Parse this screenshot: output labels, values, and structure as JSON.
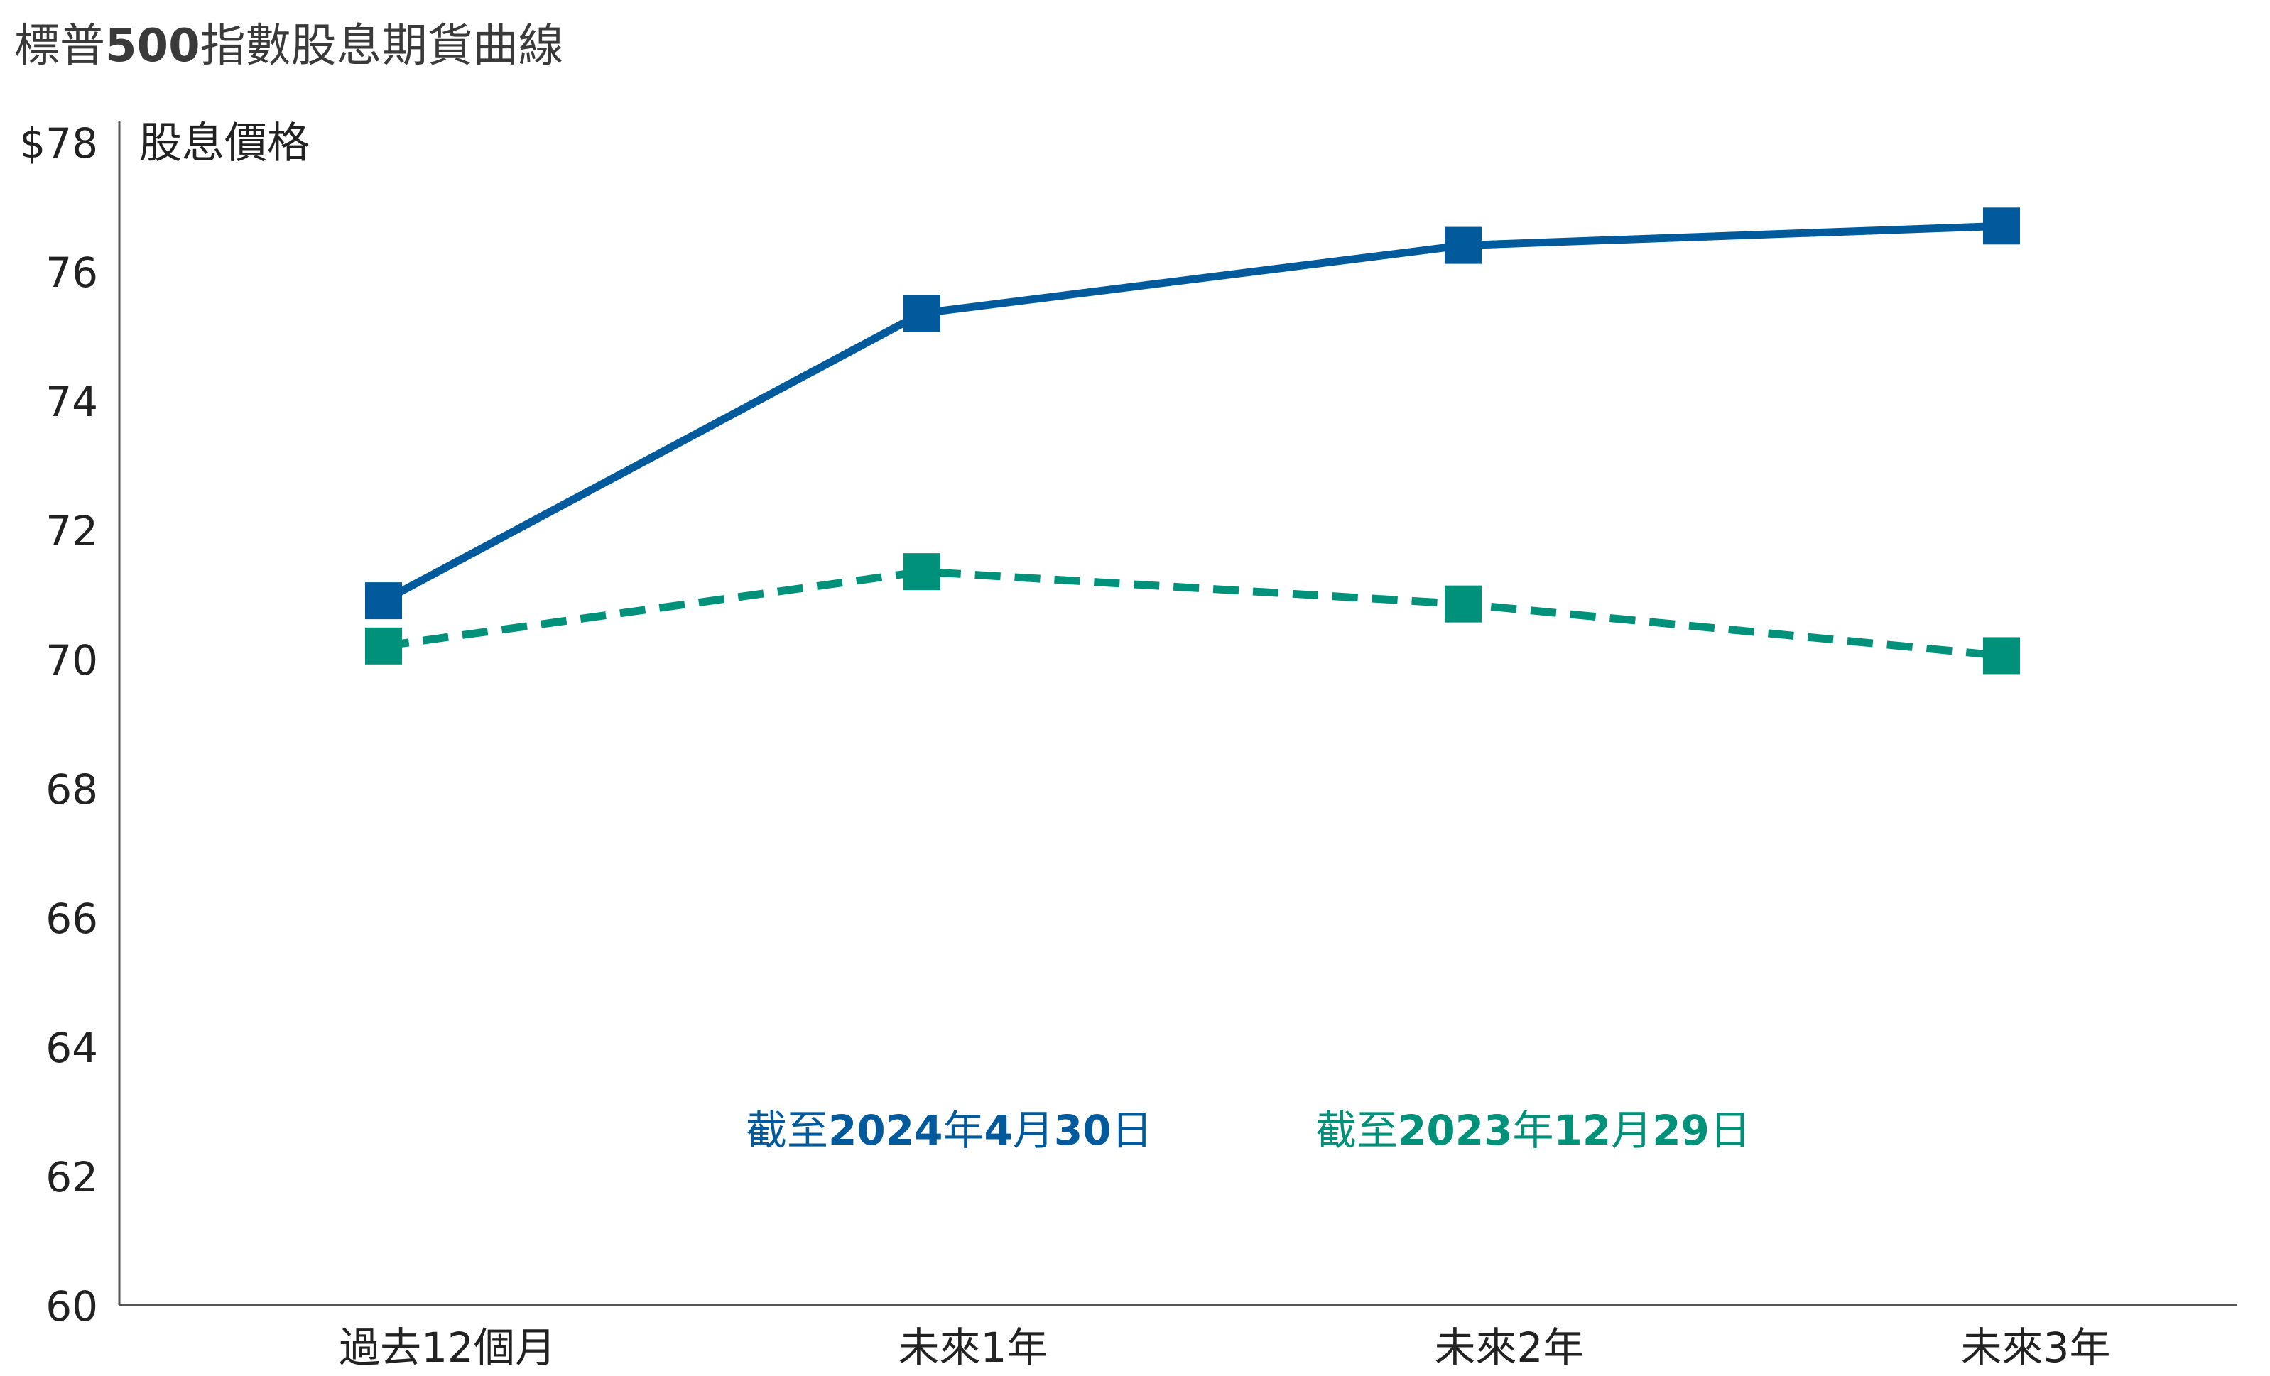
{
  "chart_data": {
    "type": "line",
    "title": {
      "prefix": "標普",
      "number": "500",
      "suffix": "指數股息期貨曲線"
    },
    "ylabel": "股息價格",
    "categories": [
      "過去12個月",
      "未來1年",
      "未來2年",
      "未來3年"
    ],
    "ylim": [
      60,
      78
    ],
    "yticks": [
      60,
      62,
      64,
      66,
      68,
      70,
      72,
      74,
      76,
      78
    ],
    "ytick_labels": [
      "60",
      "62",
      "64",
      "66",
      "68",
      "70",
      "72",
      "74",
      "76",
      "$78"
    ],
    "series": [
      {
        "name": "截至2024年4月30日",
        "legend": {
          "pre": "截至",
          "year": "2024",
          "mid": "年",
          "month": "4",
          "mid2": "月",
          "day": "30",
          "post": "日"
        },
        "values": [
          70.9,
          75.35,
          76.4,
          76.7
        ],
        "color": "#005a9c",
        "dash": false
      },
      {
        "name": "截至2023年12月29日",
        "legend": {
          "pre": "截至",
          "year": "2023",
          "mid": "年",
          "month": "12",
          "mid2": "月",
          "day": "29",
          "post": "日"
        },
        "values": [
          70.2,
          71.35,
          70.85,
          70.05
        ],
        "color": "#00917a",
        "dash": true
      }
    ]
  }
}
